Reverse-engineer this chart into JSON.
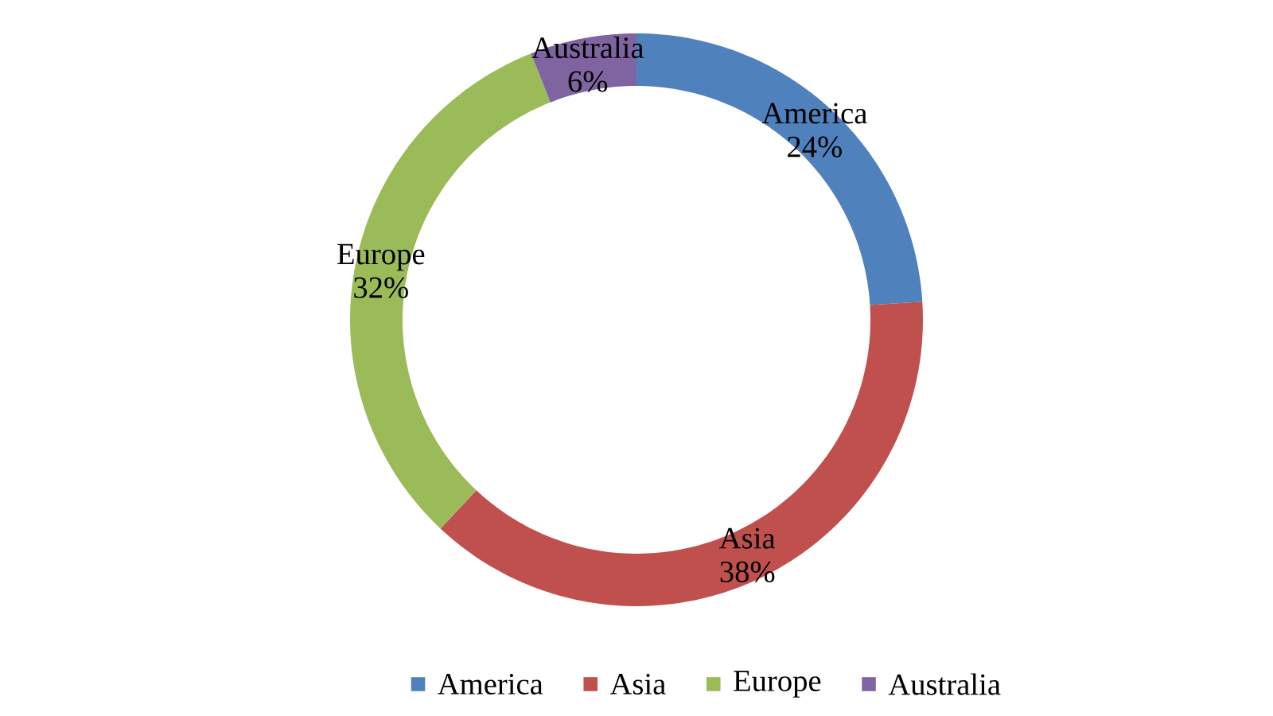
{
  "chart_data": {
    "type": "donut",
    "categories": [
      "America",
      "Asia",
      "Europe",
      "Australia"
    ],
    "values": [
      24,
      38,
      32,
      6
    ],
    "colors": [
      "#4f81bd",
      "#c0504d",
      "#9bbb59",
      "#8064a2"
    ],
    "value_labels": [
      "24%",
      "38%",
      "32%",
      "6%"
    ],
    "legend": "bottom"
  }
}
